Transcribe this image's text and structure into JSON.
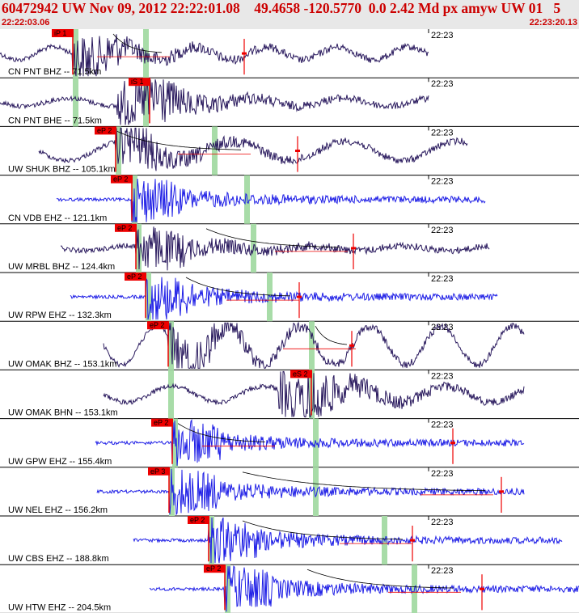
{
  "header": {
    "title": "60472942 UW Nov 09, 2012 22:22:01.08    49.4658 -120.5770  0.0 2.42 Md px amyw UW 01   5",
    "time_start": "22:22:03.06",
    "time_end": "22:23:20.13"
  },
  "colors": {
    "broadband": "#2a1a5e",
    "short_period": "#1f1fe6",
    "pick": "#ee0000",
    "window": "#a8dca8",
    "coda": "#000000",
    "amp": "#ee0000"
  },
  "minute_label": "22:23",
  "traces": [
    {
      "label": "CN PNT BHZ -- 71.5km",
      "type": "broadband",
      "pick": "iP 1",
      "s_pick": ""
    },
    {
      "label": "CN PNT BHE -- 71.5km",
      "type": "broadband",
      "pick": "",
      "s_pick": "iS 1"
    },
    {
      "label": "UW SHUK BHZ -- 105.1km",
      "type": "broadband",
      "pick": "eP 2",
      "s_pick": ""
    },
    {
      "label": "CN VDB EHZ -- 121.1km",
      "type": "short_period",
      "pick": "eP 2",
      "s_pick": ""
    },
    {
      "label": "UW MRBL BHZ -- 124.4km",
      "type": "broadband",
      "pick": "eP 2",
      "s_pick": ""
    },
    {
      "label": "UW RPW EHZ -- 132.3km",
      "type": "short_period",
      "pick": "eP 2",
      "s_pick": ""
    },
    {
      "label": "UW OMAK BHZ -- 153.1km",
      "type": "broadband",
      "pick": "eP 2",
      "s_pick": ""
    },
    {
      "label": "UW OMAK BHN -- 153.1km",
      "type": "broadband",
      "pick": "",
      "s_pick": "eS 2"
    },
    {
      "label": "UW GPW EHZ -- 155.4km",
      "type": "short_period",
      "pick": "eP 2",
      "s_pick": ""
    },
    {
      "label": "UW NEL EHZ -- 156.2km",
      "type": "short_period",
      "pick": "eP 3",
      "s_pick": ""
    },
    {
      "label": "UW CBS EHZ -- 188.8km",
      "type": "short_period",
      "pick": "eP 2",
      "s_pick": ""
    },
    {
      "label": "UW HTW EHZ -- 204.5km",
      "type": "short_period",
      "pick": "eP 2",
      "s_pick": ""
    }
  ]
}
